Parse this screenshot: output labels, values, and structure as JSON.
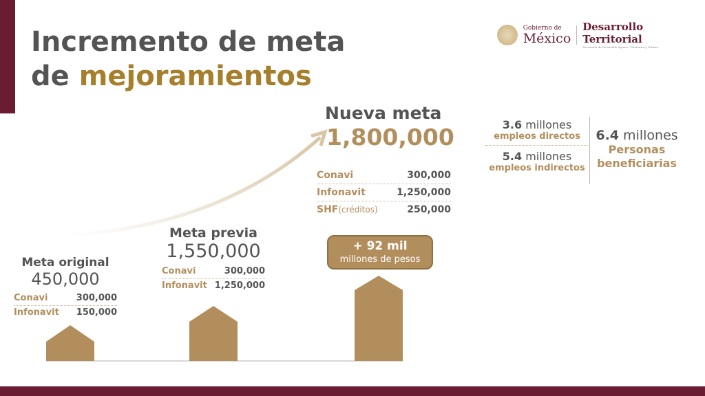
{
  "title": {
    "line1": "Incremento de meta",
    "line2_prefix": "de ",
    "line2_highlight": "mejoramientos"
  },
  "logo": {
    "gobierno": "Gobierno de",
    "mexico": "México",
    "dependencia": "Desarrollo Territorial",
    "subtitle": "Secretaría de Desarrollo Agrario, Territorial y Urbano"
  },
  "colors": {
    "maroon": "#691c32",
    "gold": "#b38e5d",
    "text": "#545454"
  },
  "original": {
    "label": "Meta original",
    "value": "450,000",
    "rows": [
      {
        "k": "Conavi",
        "v": "300,000"
      },
      {
        "k": "Infonavit",
        "v": "150,000"
      }
    ]
  },
  "previa": {
    "label": "Meta previa",
    "value": "1,550,000",
    "rows": [
      {
        "k": "Conavi",
        "v": "300,000"
      },
      {
        "k": "Infonavit",
        "v": "1,250,000"
      }
    ]
  },
  "nueva": {
    "label": "Nueva meta",
    "value": "1,800,000",
    "rows": [
      {
        "k": "Conavi",
        "k2": "",
        "v": "300,000"
      },
      {
        "k": "Infonavit",
        "k2": "",
        "v": "1,250,000"
      },
      {
        "k": "SHF",
        "k2": "(créditos)",
        "v": "250,000"
      }
    ]
  },
  "pill": {
    "line1": "+ 92 mil",
    "line2": "millones de pesos"
  },
  "stats": {
    "directos": {
      "num": "3.6",
      "unit": " millones",
      "label": "empleos directos"
    },
    "indirectos": {
      "num": "5.4",
      "unit": " millones",
      "label": "empleos indirectos"
    },
    "beneficiarias": {
      "num": "6.4",
      "unit": " millones",
      "label1": "Personas",
      "label2": "beneficiarias"
    }
  }
}
